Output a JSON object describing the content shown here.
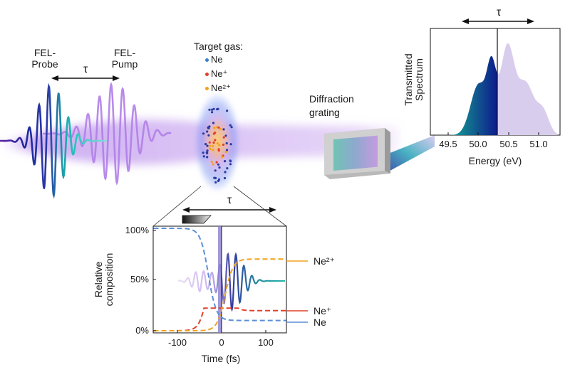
{
  "pulses": {
    "probe_label_line1": "FEL-",
    "probe_label_line2": "Probe",
    "pump_label_line1": "FEL-",
    "pump_label_line2": "Pump",
    "delay_symbol": "τ"
  },
  "target": {
    "title": "Target gas:",
    "species": [
      {
        "label": "Ne",
        "color": "#3a7fd0"
      },
      {
        "label": "Ne⁺",
        "color": "#e0402a"
      },
      {
        "label": "Ne²⁺",
        "color": "#f2a21e"
      }
    ]
  },
  "grating": {
    "label_line1": "Diffraction",
    "label_line2": "grating"
  },
  "spectrum": {
    "ylabel_line1": "Transmitted",
    "ylabel_line2": "Spectrum",
    "xlabel": "Energy (eV)",
    "delay_symbol": "τ",
    "x_ticks": [
      "49.5",
      "50.0",
      "50.5",
      "51.0"
    ]
  },
  "composition": {
    "ylabel_line1": "Relative",
    "ylabel_line2": "composition",
    "xlabel": "Time (fs)",
    "delay_symbol": "τ",
    "y_ticks": [
      "100%",
      "50%",
      "0%"
    ],
    "x_ticks": [
      "-100",
      "0",
      "100"
    ],
    "curve_labels": [
      {
        "label": "Ne²⁺",
        "color": "#f2a21e"
      },
      {
        "label": "Ne⁺",
        "color": "#e0402a"
      },
      {
        "label": "Ne",
        "color": "#5b8fd6"
      }
    ]
  },
  "colors": {
    "ne_curve": "#5b8fd6",
    "ne_plus_curve": "#e0402a",
    "ne2_plus_curve": "#f2a21e",
    "probe_pulse": "#1b2a8f",
    "pump_pulse": "#b07ee8",
    "beam": "#a56ee6"
  }
}
